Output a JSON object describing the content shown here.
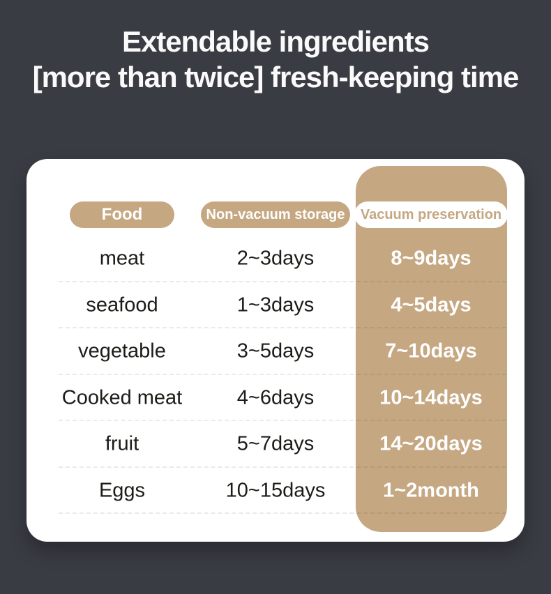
{
  "colors": {
    "background": "#3a3c44",
    "accent_tan": "#c5a782",
    "card": "#ffffff",
    "title_text": "#fafafa",
    "row_text": "#1d1b17",
    "vacuum_value_text": "#ffffff"
  },
  "title": {
    "line1": "Extendable ingredients",
    "line2": "[more than twice] fresh-keeping time"
  },
  "table": {
    "header": {
      "food_label": "Food",
      "non_vacuum_label": "Non-vacuum storage",
      "vacuum_label": "Vacuum preservation"
    },
    "rows": [
      {
        "food": "meat",
        "non_vacuum": "2~3days",
        "vacuum": "8~9days"
      },
      {
        "food": "seafood",
        "non_vacuum": "1~3days",
        "vacuum": "4~5days"
      },
      {
        "food": "vegetable",
        "non_vacuum": "3~5days",
        "vacuum": "7~10days"
      },
      {
        "food": "Cooked meat",
        "non_vacuum": "4~6days",
        "vacuum": "10~14days"
      },
      {
        "food": "fruit",
        "non_vacuum": "5~7days",
        "vacuum": "14~20days"
      },
      {
        "food": "Eggs",
        "non_vacuum": "10~15days",
        "vacuum": "1~2month"
      }
    ]
  },
  "chart_data": {
    "type": "table",
    "title": "Extendable ingredients [more than twice] fresh-keeping time",
    "columns": [
      "Food",
      "Non-vacuum storage",
      "Vacuum preservation"
    ],
    "rows": [
      [
        "meat",
        "2~3days",
        "8~9days"
      ],
      [
        "seafood",
        "1~3days",
        "4~5days"
      ],
      [
        "vegetable",
        "3~5days",
        "7~10days"
      ],
      [
        "Cooked meat",
        "4~6days",
        "10~14days"
      ],
      [
        "fruit",
        "5~7days",
        "14~20days"
      ],
      [
        "Eggs",
        "10~15days",
        "1~2month"
      ]
    ]
  }
}
